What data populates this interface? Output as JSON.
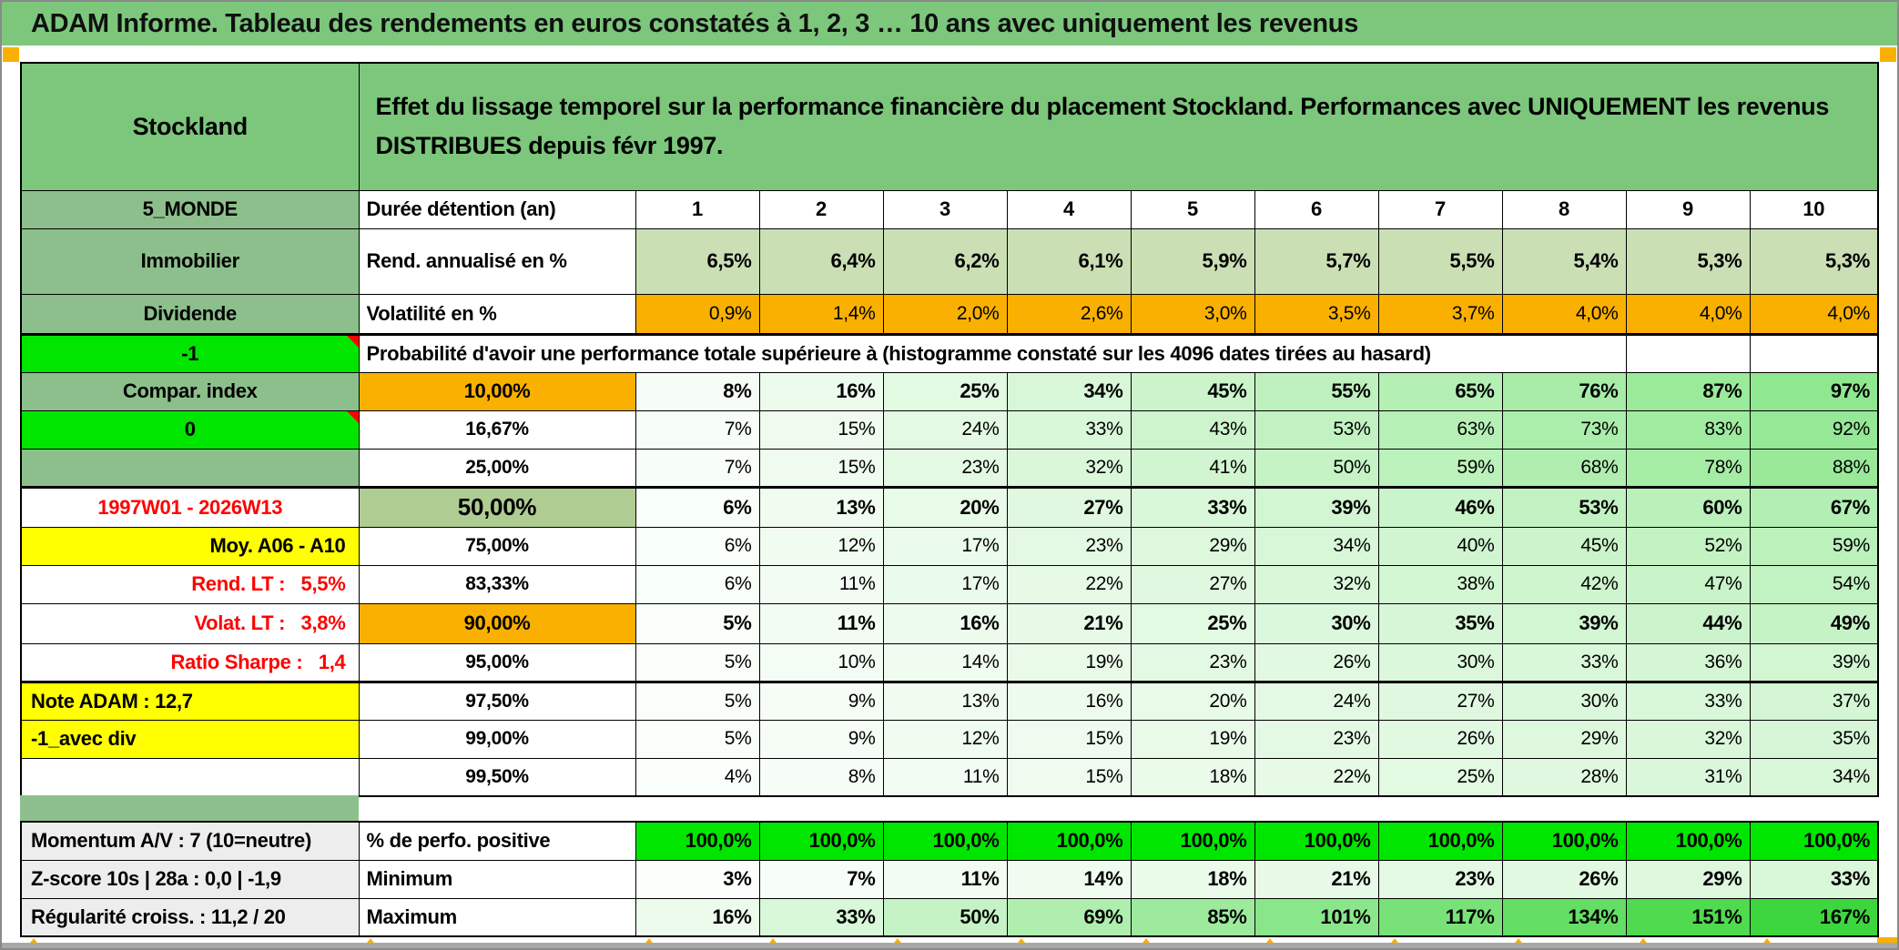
{
  "window_title": "ADAM Informe. Tableau des rendements en euros constatés à 1, 2, 3 … 10 ans avec uniquement les revenus",
  "colors": {
    "header_green": "#7CC77C",
    "label_sage": "#8CBF8C",
    "olive_green": "#AFCC92",
    "rend_green": "#CBDFB5",
    "orange": "#F9B000",
    "bright_green": "#00E600",
    "yellow": "#FFFF00",
    "red_text": "#FF0000",
    "gray_label": "#EDEDED",
    "gradient_max_green": "#3ED63E"
  },
  "header": {
    "name": "Stockland",
    "description": "Effet du lissage temporel sur la performance financière du placement Stockland. Performances avec UNIQUEMENT les revenus DISTRIBUES depuis févr 1997."
  },
  "columns": [
    "1",
    "2",
    "3",
    "4",
    "5",
    "6",
    "7",
    "8",
    "9",
    "10"
  ],
  "top": {
    "duree": {
      "a": "5_MONDE",
      "b": "Durée détention (an)"
    },
    "rend": {
      "a": "Immobilier",
      "b": "Rend. annualisé en %",
      "values": [
        "6,5%",
        "6,4%",
        "6,2%",
        "6,1%",
        "5,9%",
        "5,7%",
        "5,5%",
        "5,4%",
        "5,3%",
        "5,3%"
      ]
    },
    "volat": {
      "a": "Dividende",
      "b": "Volatilité en %",
      "values": [
        "0,9%",
        "1,4%",
        "2,0%",
        "2,6%",
        "3,0%",
        "3,5%",
        "3,7%",
        "4,0%",
        "4,0%",
        "4,0%"
      ]
    }
  },
  "proba": {
    "a_label": "-1",
    "title": "Probabilité d'avoir une performance totale supérieure à (histogramme constaté sur les 4096 dates tirées au hasard)",
    "rows": [
      {
        "a": "Compar. index",
        "a_style": "sage",
        "threshold": "10,00%",
        "t_style": "orange",
        "bold": true,
        "values": [
          "8%",
          "16%",
          "25%",
          "34%",
          "45%",
          "55%",
          "65%",
          "76%",
          "87%",
          "97%"
        ]
      },
      {
        "a": "0",
        "a_style": "bright marker",
        "threshold": "16,67%",
        "values": [
          "7%",
          "15%",
          "24%",
          "33%",
          "43%",
          "53%",
          "63%",
          "73%",
          "83%",
          "92%"
        ]
      },
      {
        "a": "",
        "a_style": "sage",
        "threshold": "25,00%",
        "thick_bottom": true,
        "values": [
          "7%",
          "15%",
          "23%",
          "32%",
          "41%",
          "50%",
          "59%",
          "68%",
          "78%",
          "88%"
        ]
      },
      {
        "a": "1997W01 - 2026W13",
        "a_style": "red",
        "threshold": "50,00%",
        "t_style": "olive",
        "bold": true,
        "tall": true,
        "values": [
          "6%",
          "13%",
          "20%",
          "27%",
          "33%",
          "39%",
          "46%",
          "53%",
          "60%",
          "67%"
        ]
      },
      {
        "a": "Moy. A06 - A10",
        "a_style": "yellow right",
        "threshold": "75,00%",
        "values": [
          "6%",
          "12%",
          "17%",
          "23%",
          "29%",
          "34%",
          "40%",
          "45%",
          "52%",
          "59%"
        ]
      },
      {
        "a": "Rend. LT :   5,5%",
        "a_style": "red right",
        "threshold": "83,33%",
        "values": [
          "6%",
          "11%",
          "17%",
          "22%",
          "27%",
          "32%",
          "38%",
          "42%",
          "47%",
          "54%"
        ]
      },
      {
        "a": "Volat. LT :   3,8%",
        "a_style": "red right",
        "threshold": "90,00%",
        "t_style": "orange",
        "bold": true,
        "tall": true,
        "values": [
          "5%",
          "11%",
          "16%",
          "21%",
          "25%",
          "30%",
          "35%",
          "39%",
          "44%",
          "49%"
        ]
      },
      {
        "a": "Ratio Sharpe :   1,4",
        "a_style": "red right",
        "threshold": "95,00%",
        "thick_bottom": true,
        "values": [
          "5%",
          "10%",
          "14%",
          "19%",
          "23%",
          "26%",
          "30%",
          "33%",
          "36%",
          "39%"
        ]
      },
      {
        "a": "Note ADAM : 12,7",
        "a_style": "yellow left",
        "threshold": "97,50%",
        "values": [
          "5%",
          "9%",
          "13%",
          "16%",
          "20%",
          "24%",
          "27%",
          "30%",
          "33%",
          "37%"
        ]
      },
      {
        "a": "-1_avec div",
        "a_style": "yellow left",
        "threshold": "99,00%",
        "values": [
          "5%",
          "9%",
          "12%",
          "15%",
          "19%",
          "23%",
          "26%",
          "29%",
          "32%",
          "35%"
        ]
      },
      {
        "a": "",
        "a_style": "white",
        "threshold": "99,50%",
        "values": [
          "4%",
          "8%",
          "11%",
          "15%",
          "18%",
          "22%",
          "25%",
          "28%",
          "31%",
          "34%"
        ]
      }
    ]
  },
  "bottom": {
    "rows": [
      {
        "a": "Momentum A/V : 7 (10=neutre)",
        "b": "% de perfo. positive",
        "style": "perfo",
        "values": [
          "100,0%",
          "100,0%",
          "100,0%",
          "100,0%",
          "100,0%",
          "100,0%",
          "100,0%",
          "100,0%",
          "100,0%",
          "100,0%"
        ]
      },
      {
        "a": "Z-score 10s | 28a : 0,0 | -1,9",
        "b": "Minimum",
        "style": "grad",
        "values": [
          "3%",
          "7%",
          "11%",
          "14%",
          "18%",
          "21%",
          "23%",
          "26%",
          "29%",
          "33%"
        ]
      },
      {
        "a": "Régularité croiss. : 11,2 / 20",
        "b": "Maximum",
        "style": "grad",
        "values": [
          "16%",
          "33%",
          "50%",
          "69%",
          "85%",
          "101%",
          "117%",
          "134%",
          "151%",
          "167%"
        ]
      }
    ]
  }
}
